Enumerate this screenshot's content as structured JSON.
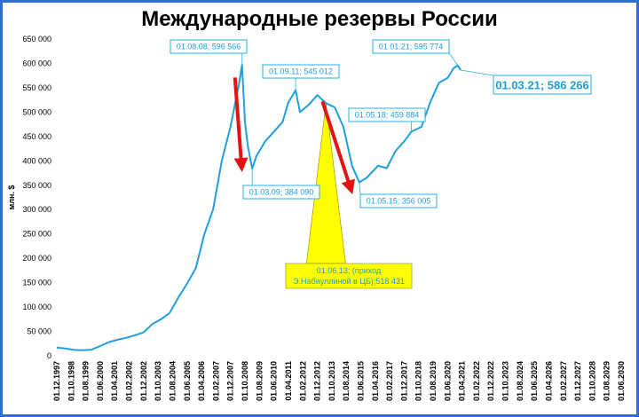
{
  "chart_data": {
    "type": "line",
    "title": "Международные резервы России",
    "ylabel": "млн. $",
    "ylim": [
      0,
      650000
    ],
    "yticks": [
      "0",
      "50 000",
      "100 000",
      "150 000",
      "200 000",
      "250 000",
      "300 000",
      "350 000",
      "400 000",
      "450 000",
      "500 000",
      "550 000",
      "600 000",
      "650 000"
    ],
    "xlim": [
      "1997-12-01",
      "2030-06-01"
    ],
    "x_tick_labels": [
      "01.12.1997",
      "01.10.1998",
      "01.08.1999",
      "01.06.2000",
      "01.04.2001",
      "01.02.2002",
      "01.12.2002",
      "01.10.2003",
      "01.08.2004",
      "01.06.2005",
      "01.04.2006",
      "01.02.2007",
      "01.12.2007",
      "01.10.2008",
      "01.08.2009",
      "01.06.2010",
      "01.04.2011",
      "01.02.2012",
      "01.12.2012",
      "01.10.2013",
      "01.08.2014",
      "01.06.2015",
      "01.04.2016",
      "01.02.2017",
      "01.12.2017",
      "01.10.2018",
      "01.08.2019",
      "01.06.2020",
      "01.04.2021",
      "01.02.2022",
      "01.12.2022",
      "01.10.2023",
      "01.08.2024",
      "01.06.2025",
      "01.04.2026",
      "01.02.2027",
      "01.12.2027",
      "01.10.2028",
      "01.08.2029",
      "01.06.2030"
    ],
    "series": [
      {
        "color": "#1f9fe0",
        "points": [
          [
            "1997-12-01",
            17000
          ],
          [
            "1998-06-01",
            15000
          ],
          [
            "1998-12-01",
            12000
          ],
          [
            "1999-06-01",
            11500
          ],
          [
            "1999-12-01",
            12500
          ],
          [
            "2000-06-01",
            20000
          ],
          [
            "2000-12-01",
            28000
          ],
          [
            "2001-06-01",
            33000
          ],
          [
            "2001-12-01",
            37000
          ],
          [
            "2002-06-01",
            42000
          ],
          [
            "2002-12-01",
            48000
          ],
          [
            "2003-06-01",
            65000
          ],
          [
            "2003-12-01",
            75000
          ],
          [
            "2004-06-01",
            88000
          ],
          [
            "2004-12-01",
            120000
          ],
          [
            "2005-06-01",
            148000
          ],
          [
            "2005-12-01",
            180000
          ],
          [
            "2006-06-01",
            250000
          ],
          [
            "2006-12-01",
            300000
          ],
          [
            "2007-06-01",
            400000
          ],
          [
            "2007-12-01",
            470000
          ],
          [
            "2008-06-01",
            560000
          ],
          [
            "2008-08-01",
            596566
          ],
          [
            "2008-10-01",
            480000
          ],
          [
            "2008-12-01",
            430000
          ],
          [
            "2009-03-01",
            384090
          ],
          [
            "2009-06-01",
            410000
          ],
          [
            "2009-12-01",
            440000
          ],
          [
            "2010-06-01",
            460000
          ],
          [
            "2010-12-01",
            480000
          ],
          [
            "2011-04-01",
            520000
          ],
          [
            "2011-09-01",
            545012
          ],
          [
            "2011-12-01",
            500000
          ],
          [
            "2012-06-01",
            515000
          ],
          [
            "2012-12-01",
            535000
          ],
          [
            "2013-06-01",
            518431
          ],
          [
            "2013-12-01",
            510000
          ],
          [
            "2014-06-01",
            470000
          ],
          [
            "2014-12-01",
            390000
          ],
          [
            "2015-05-01",
            356005
          ],
          [
            "2015-10-01",
            365000
          ],
          [
            "2016-06-01",
            390000
          ],
          [
            "2016-12-01",
            385000
          ],
          [
            "2017-06-01",
            420000
          ],
          [
            "2017-12-01",
            440000
          ],
          [
            "2018-05-01",
            459884
          ],
          [
            "2018-12-01",
            470000
          ],
          [
            "2019-06-01",
            520000
          ],
          [
            "2019-12-01",
            560000
          ],
          [
            "2020-06-01",
            570000
          ],
          [
            "2020-10-01",
            590000
          ],
          [
            "2021-01-01",
            595774
          ],
          [
            "2021-03-01",
            586266
          ]
        ]
      }
    ],
    "annotations": [
      {
        "label": "01.08.08; 596 566",
        "date": "2008-08-01",
        "value": 596566
      },
      {
        "label": "01.03.09; 384 090",
        "date": "2009-03-01",
        "value": 384090
      },
      {
        "label": "01.09.11; 545 012",
        "date": "2011-09-01",
        "value": 545012
      },
      {
        "label": "01.05.15; 356 005",
        "date": "2015-05-01",
        "value": 356005
      },
      {
        "label": "01.05.18; 459 884",
        "date": "2018-05-01",
        "value": 459884
      },
      {
        "label": "01.01.21; 595 774",
        "date": "2021-01-01",
        "value": 595774
      },
      {
        "label": "01.03.21; 586 266",
        "date": "2021-03-01",
        "value": 586266
      },
      {
        "label_lines": [
          "01.06.13; (приход",
          "Э.Набиуллиной в ЦБ);518 431"
        ],
        "date": "2013-06-01",
        "value": 518431
      }
    ],
    "colors": {
      "line": "#1f9fe0",
      "arrows": "#e31414",
      "highlight": "#ffff00",
      "callout_text": "#1e9fd6",
      "frame": "#2f6bd6"
    },
    "grid": false
  }
}
